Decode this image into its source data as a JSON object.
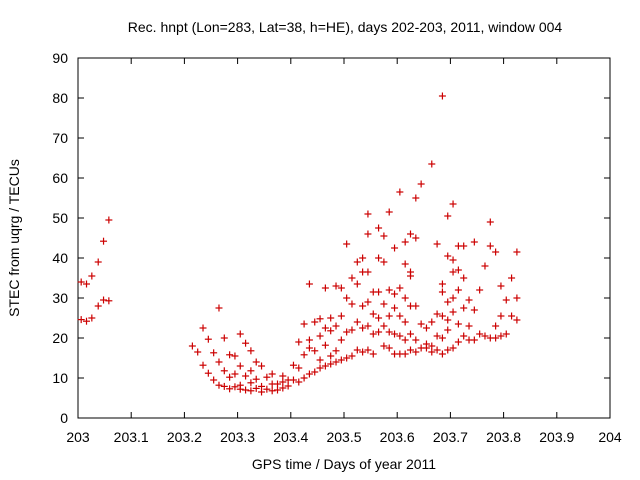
{
  "chart_data": {
    "type": "scatter",
    "title": "Rec. hnpt (Lon=283, Lat=38, h=HE), days 202-203, 2011, window 004",
    "xlabel": "GPS time / Days of year 2011",
    "ylabel": "STEC from uqrg / TECUs",
    "xlim": [
      203,
      204
    ],
    "ylim": [
      0,
      90
    ],
    "x_ticks": [
      203,
      203.1,
      203.2,
      203.3,
      203.4,
      203.5,
      203.6,
      203.7,
      203.8,
      203.9,
      204
    ],
    "x_tick_labels": [
      "203",
      "203.1",
      "203.2",
      "203.3",
      "203.4",
      "203.5",
      "203.6",
      "203.7",
      "203.8",
      "203.9",
      "204"
    ],
    "y_ticks": [
      0,
      10,
      20,
      30,
      40,
      50,
      60,
      70,
      80,
      90
    ],
    "y_tick_labels": [
      "0",
      "10",
      "20",
      "30",
      "40",
      "50",
      "60",
      "70",
      "80",
      "90"
    ],
    "grid": false,
    "legend": "none",
    "marker": "plus",
    "marker_color": "#cc0000",
    "series": [
      {
        "points": [
          [
            203.006,
            24.6
          ],
          [
            203.006,
            34.0
          ],
          [
            203.016,
            24.2
          ],
          [
            203.016,
            33.5
          ],
          [
            203.026,
            25.0
          ],
          [
            203.026,
            35.5
          ],
          [
            203.038,
            28.0
          ],
          [
            203.038,
            39.0
          ],
          [
            203.048,
            29.5
          ],
          [
            203.048,
            44.2
          ],
          [
            203.058,
            29.3
          ],
          [
            203.058,
            49.5
          ],
          [
            203.215,
            18.0
          ],
          [
            203.225,
            16.5
          ],
          [
            203.235,
            22.5
          ],
          [
            203.235,
            13.2
          ],
          [
            203.245,
            19.7
          ],
          [
            203.245,
            11.2
          ],
          [
            203.255,
            16.3
          ],
          [
            203.255,
            9.5
          ],
          [
            203.265,
            27.5
          ],
          [
            203.265,
            14.0
          ],
          [
            203.265,
            8.2
          ],
          [
            203.275,
            20.0
          ],
          [
            203.275,
            11.8
          ],
          [
            203.275,
            7.9
          ],
          [
            203.285,
            15.8
          ],
          [
            203.285,
            10.2
          ],
          [
            203.285,
            7.3
          ],
          [
            203.295,
            15.5
          ],
          [
            203.295,
            11.0
          ],
          [
            203.295,
            7.8
          ],
          [
            203.305,
            21.0
          ],
          [
            203.305,
            13.0
          ],
          [
            203.305,
            8.2
          ],
          [
            203.305,
            7.2
          ],
          [
            203.315,
            18.7
          ],
          [
            203.315,
            10.5
          ],
          [
            203.315,
            7.0
          ],
          [
            203.325,
            16.8
          ],
          [
            203.325,
            11.8
          ],
          [
            203.325,
            8.8
          ],
          [
            203.325,
            6.8
          ],
          [
            203.335,
            14.0
          ],
          [
            203.335,
            9.7
          ],
          [
            203.335,
            7.4
          ],
          [
            203.345,
            13.0
          ],
          [
            203.345,
            7.9
          ],
          [
            203.345,
            6.5
          ],
          [
            203.355,
            10.2
          ],
          [
            203.355,
            7.2
          ],
          [
            203.365,
            11.0
          ],
          [
            203.365,
            8.5
          ],
          [
            203.365,
            6.8
          ],
          [
            203.375,
            8.5
          ],
          [
            203.375,
            7.0
          ],
          [
            203.385,
            10.5
          ],
          [
            203.385,
            9.0
          ],
          [
            203.385,
            7.5
          ],
          [
            203.395,
            9.5
          ],
          [
            203.395,
            8.0
          ],
          [
            203.405,
            13.2
          ],
          [
            203.405,
            9.5
          ],
          [
            203.415,
            19.0
          ],
          [
            203.415,
            12.5
          ],
          [
            203.415,
            9.0
          ],
          [
            203.425,
            23.5
          ],
          [
            203.425,
            15.8
          ],
          [
            203.425,
            10.0
          ],
          [
            203.435,
            33.5
          ],
          [
            203.435,
            19.5
          ],
          [
            203.435,
            17.5
          ],
          [
            203.435,
            11.0
          ],
          [
            203.445,
            24.0
          ],
          [
            203.445,
            16.8
          ],
          [
            203.445,
            11.5
          ],
          [
            203.455,
            24.8
          ],
          [
            203.455,
            20.5
          ],
          [
            203.455,
            14.5
          ],
          [
            203.455,
            12.5
          ],
          [
            203.465,
            32.5
          ],
          [
            203.465,
            22.5
          ],
          [
            203.465,
            18.2
          ],
          [
            203.465,
            13.0
          ],
          [
            203.475,
            25.0
          ],
          [
            203.475,
            21.8
          ],
          [
            203.475,
            15.5
          ],
          [
            203.475,
            13.5
          ],
          [
            203.485,
            33.0
          ],
          [
            203.485,
            23.0
          ],
          [
            203.485,
            16.8
          ],
          [
            203.485,
            14.0
          ],
          [
            203.495,
            32.5
          ],
          [
            203.495,
            25.5
          ],
          [
            203.495,
            19.5
          ],
          [
            203.495,
            14.5
          ],
          [
            203.505,
            43.5
          ],
          [
            203.505,
            30.0
          ],
          [
            203.505,
            21.5
          ],
          [
            203.505,
            15.0
          ],
          [
            203.515,
            35.0
          ],
          [
            203.515,
            28.5
          ],
          [
            203.515,
            22.0
          ],
          [
            203.515,
            15.5
          ],
          [
            203.525,
            39.0
          ],
          [
            203.525,
            33.5
          ],
          [
            203.525,
            24.0
          ],
          [
            203.525,
            17.0
          ],
          [
            203.535,
            40.0
          ],
          [
            203.535,
            36.5
          ],
          [
            203.535,
            28.0
          ],
          [
            203.535,
            22.5
          ],
          [
            203.535,
            16.5
          ],
          [
            203.545,
            51.0
          ],
          [
            203.545,
            46.0
          ],
          [
            203.545,
            36.5
          ],
          [
            203.545,
            29.0
          ],
          [
            203.545,
            23.0
          ],
          [
            203.545,
            17.0
          ],
          [
            203.555,
            31.5
          ],
          [
            203.555,
            26.0
          ],
          [
            203.555,
            21.0
          ],
          [
            203.555,
            16.0
          ],
          [
            203.565,
            47.5
          ],
          [
            203.565,
            40.0
          ],
          [
            203.565,
            31.5
          ],
          [
            203.565,
            25.0
          ],
          [
            203.565,
            21.5
          ],
          [
            203.575,
            45.5
          ],
          [
            203.575,
            39.0
          ],
          [
            203.575,
            28.5
          ],
          [
            203.575,
            23.0
          ],
          [
            203.575,
            18.0
          ],
          [
            203.585,
            51.5
          ],
          [
            203.585,
            32.0
          ],
          [
            203.585,
            25.5
          ],
          [
            203.585,
            21.5
          ],
          [
            203.585,
            17.5
          ],
          [
            203.595,
            42.5
          ],
          [
            203.595,
            31.0
          ],
          [
            203.595,
            27.5
          ],
          [
            203.595,
            21.0
          ],
          [
            203.595,
            16.0
          ],
          [
            203.605,
            56.5
          ],
          [
            203.605,
            32.5
          ],
          [
            203.605,
            25.5
          ],
          [
            203.605,
            20.5
          ],
          [
            203.605,
            16.0
          ],
          [
            203.615,
            44.0
          ],
          [
            203.615,
            38.5
          ],
          [
            203.615,
            30.0
          ],
          [
            203.615,
            24.0
          ],
          [
            203.615,
            19.5
          ],
          [
            203.615,
            16.0
          ],
          [
            203.625,
            46.0
          ],
          [
            203.625,
            36.5
          ],
          [
            203.625,
            35.5
          ],
          [
            203.625,
            28.0
          ],
          [
            203.625,
            21.0
          ],
          [
            203.625,
            17.0
          ],
          [
            203.635,
            55.0
          ],
          [
            203.635,
            45.0
          ],
          [
            203.635,
            28.0
          ],
          [
            203.635,
            19.5
          ],
          [
            203.635,
            16.5
          ],
          [
            203.645,
            58.5
          ],
          [
            203.645,
            23.5
          ],
          [
            203.645,
            17.5
          ],
          [
            203.655,
            22.5
          ],
          [
            203.655,
            18.5
          ],
          [
            203.655,
            17.5
          ],
          [
            203.665,
            63.5
          ],
          [
            203.665,
            24.0
          ],
          [
            203.665,
            18.0
          ],
          [
            203.665,
            16.5
          ],
          [
            203.675,
            43.5
          ],
          [
            203.675,
            26.0
          ],
          [
            203.675,
            20.5
          ],
          [
            203.675,
            17.0
          ],
          [
            203.685,
            80.5
          ],
          [
            203.685,
            33.5
          ],
          [
            203.685,
            31.5
          ],
          [
            203.685,
            25.5
          ],
          [
            203.685,
            20.0
          ],
          [
            203.685,
            16.0
          ],
          [
            203.695,
            50.5
          ],
          [
            203.695,
            40.5
          ],
          [
            203.695,
            29.0
          ],
          [
            203.695,
            24.5
          ],
          [
            203.695,
            22.0
          ],
          [
            203.695,
            17.0
          ],
          [
            203.705,
            53.5
          ],
          [
            203.705,
            39.5
          ],
          [
            203.705,
            36.5
          ],
          [
            203.705,
            30.0
          ],
          [
            203.705,
            26.5
          ],
          [
            203.705,
            17.5
          ],
          [
            203.715,
            43.0
          ],
          [
            203.715,
            37.0
          ],
          [
            203.715,
            32.0
          ],
          [
            203.715,
            23.5
          ],
          [
            203.715,
            19.0
          ],
          [
            203.725,
            43.0
          ],
          [
            203.725,
            35.0
          ],
          [
            203.725,
            27.5
          ],
          [
            203.725,
            20.5
          ],
          [
            203.735,
            29.5
          ],
          [
            203.735,
            23.0
          ],
          [
            203.735,
            19.5
          ],
          [
            203.745,
            44.0
          ],
          [
            203.745,
            27.0
          ],
          [
            203.745,
            19.5
          ],
          [
            203.755,
            32.0
          ],
          [
            203.755,
            21.0
          ],
          [
            203.765,
            38.0
          ],
          [
            203.765,
            20.5
          ],
          [
            203.775,
            49.0
          ],
          [
            203.775,
            43.0
          ],
          [
            203.775,
            20.0
          ],
          [
            203.785,
            41.5
          ],
          [
            203.785,
            23.0
          ],
          [
            203.785,
            20.0
          ],
          [
            203.795,
            33.0
          ],
          [
            203.795,
            25.5
          ],
          [
            203.795,
            20.5
          ],
          [
            203.805,
            29.5
          ],
          [
            203.805,
            21.0
          ],
          [
            203.815,
            35.0
          ],
          [
            203.815,
            25.5
          ],
          [
            203.825,
            41.5
          ],
          [
            203.825,
            30.0
          ],
          [
            203.825,
            24.5
          ]
        ]
      }
    ]
  }
}
